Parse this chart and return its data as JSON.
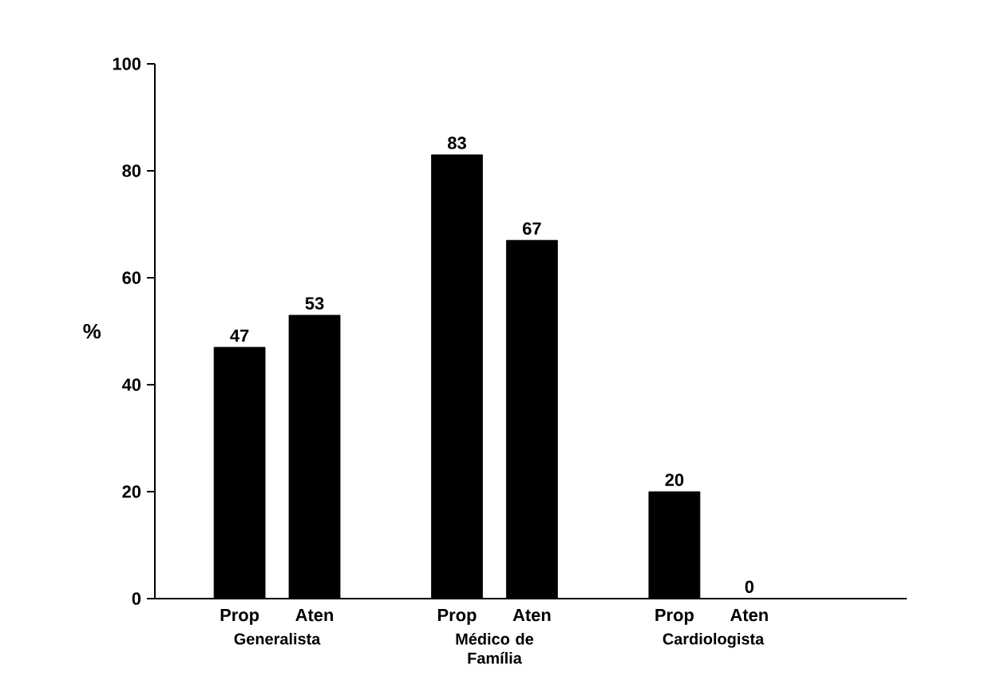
{
  "chart_data": {
    "type": "bar",
    "ylabel": "%",
    "categories": [
      "Prop",
      "Aten",
      "Prop",
      "Aten",
      "Prop",
      "Aten"
    ],
    "values": [
      47,
      53,
      83,
      67,
      20,
      0
    ],
    "color": "#000000",
    "ylim": [
      0,
      100
    ],
    "yticks": [
      0,
      20,
      40,
      60,
      80,
      100
    ],
    "data_labels": true,
    "annotations": [
      "Generalista",
      "Médico de Família",
      "Cardiologista"
    ]
  }
}
